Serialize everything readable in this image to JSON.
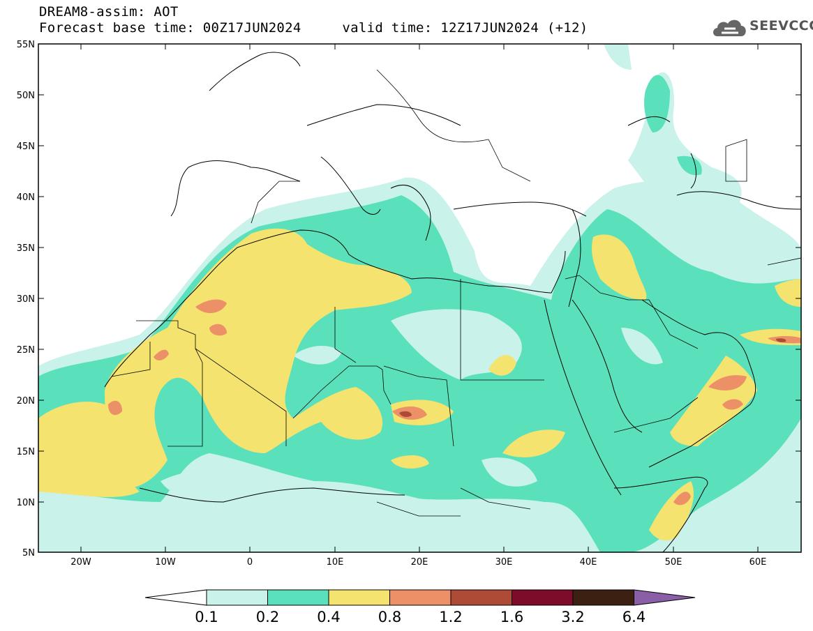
{
  "header": {
    "title": "DREAM8-assim: AOT",
    "base_time": "Forecast base time: 00Z17JUN2024",
    "valid_time": "valid time: 12Z17JUN2024 (+12)"
  },
  "logo": {
    "text": "SEEVCCC",
    "icon": "cloud-icon"
  },
  "map": {
    "lat_labels": [
      "55N",
      "50N",
      "45N",
      "40N",
      "35N",
      "30N",
      "25N",
      "20N",
      "15N",
      "10N",
      "5N"
    ],
    "lon_labels": [
      "20W",
      "10W",
      "0",
      "10E",
      "20E",
      "30E",
      "40E",
      "50E",
      "60E"
    ]
  },
  "colorbar": {
    "colors": [
      "#c8f2ea",
      "#5ae1bc",
      "#f5e36f",
      "#eb9067",
      "#ad4b37",
      "#7c0c28",
      "#3c2113"
    ],
    "under_color": "#ffffff",
    "over_color": "#8a5fa7",
    "labels": [
      "0.1",
      "0.2",
      "0.4",
      "0.8",
      "1.2",
      "1.6",
      "3.2",
      "6.4"
    ]
  }
}
